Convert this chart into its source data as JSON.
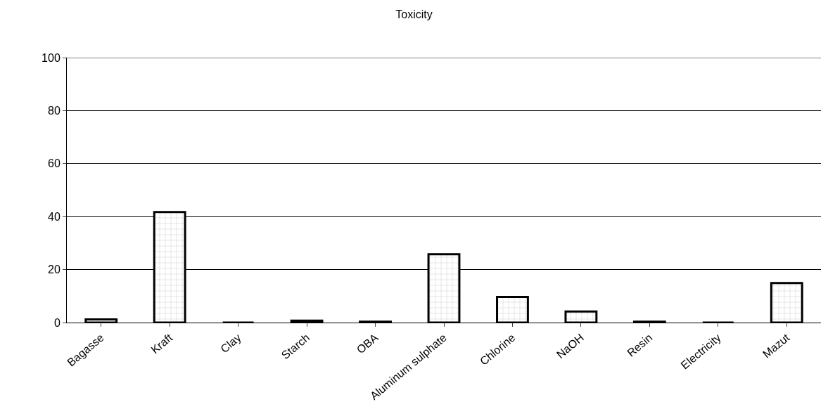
{
  "chart_data": {
    "type": "bar",
    "title": "Toxicity",
    "categories": [
      "Bagasse",
      "Kraft",
      "Clay",
      "Starch",
      "OBA",
      "Aluminum sulphate",
      "Chlorine",
      "NaOH",
      "Resin",
      "Electricity",
      "Mazut"
    ],
    "values": [
      1.2,
      41.7,
      0,
      0.7,
      0.3,
      25.8,
      9.7,
      4.2,
      0.3,
      0,
      14.9
    ],
    "ylim": [
      0,
      100
    ],
    "yticks": [
      0,
      20,
      40,
      60,
      80,
      100
    ],
    "grid": "y"
  }
}
